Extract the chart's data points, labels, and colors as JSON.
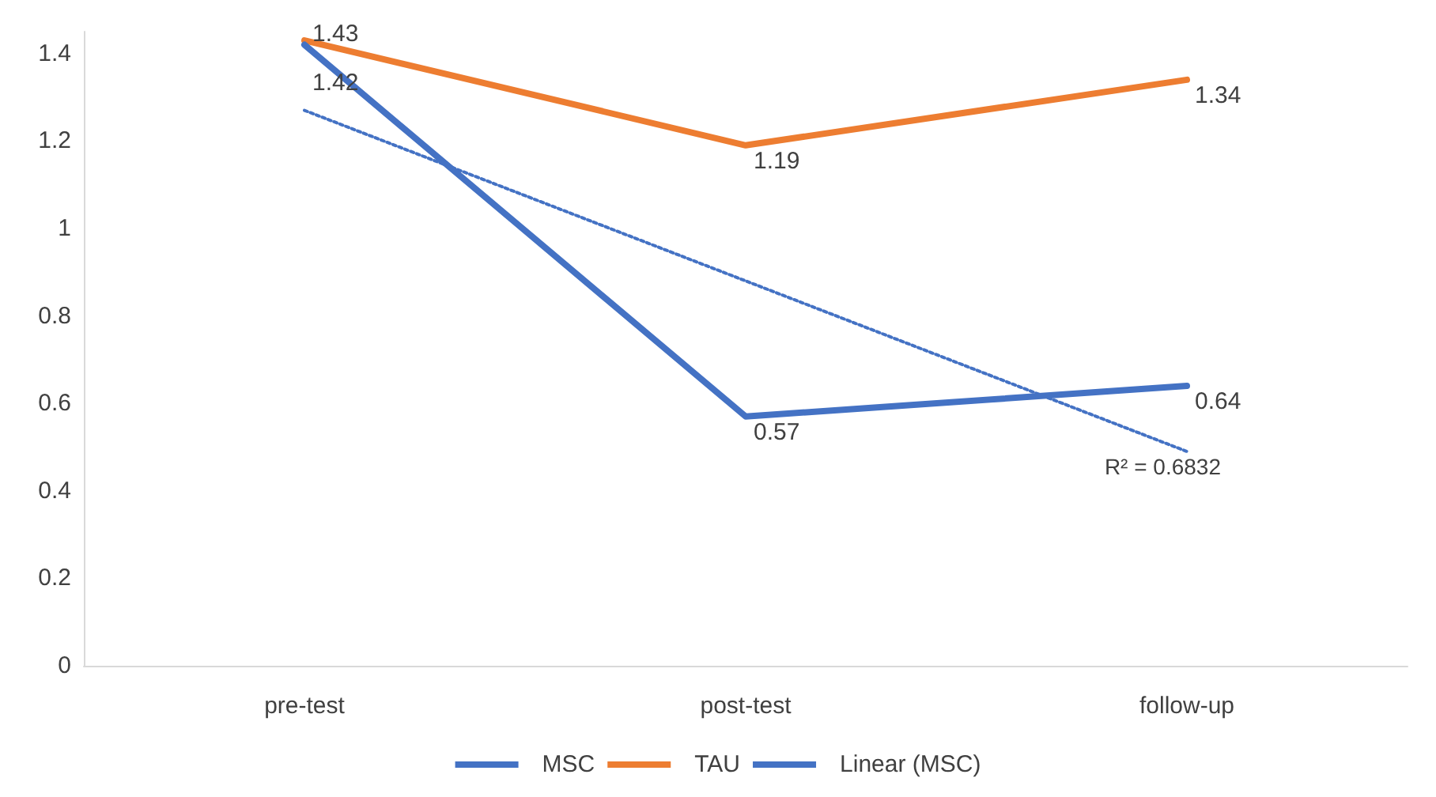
{
  "chart_data": {
    "type": "line",
    "categories": [
      "pre-test",
      "post-test",
      "follow-up"
    ],
    "series": [
      {
        "name": "MSC",
        "color": "#4472c4",
        "values": [
          1.42,
          0.57,
          0.64
        ],
        "value_labels": [
          "1.42",
          "0.57",
          "0.64"
        ]
      },
      {
        "name": "TAU",
        "color": "#ed7d31",
        "values": [
          1.43,
          1.19,
          1.34
        ],
        "value_labels": [
          "1.43",
          "1.19",
          "1.34"
        ]
      },
      {
        "name": "Linear (MSC)",
        "color": "#4472c4",
        "values": [
          1.27,
          0.88,
          0.49
        ],
        "line_style": "dotted"
      }
    ],
    "annotations": [
      "R² = 0.6832"
    ],
    "ylim": [
      0,
      1.45
    ],
    "yticks": [
      0,
      0.2,
      0.4,
      0.6,
      0.8,
      1,
      1.2,
      1.4
    ],
    "grid": false,
    "legend": "bottom",
    "marker": "none"
  }
}
